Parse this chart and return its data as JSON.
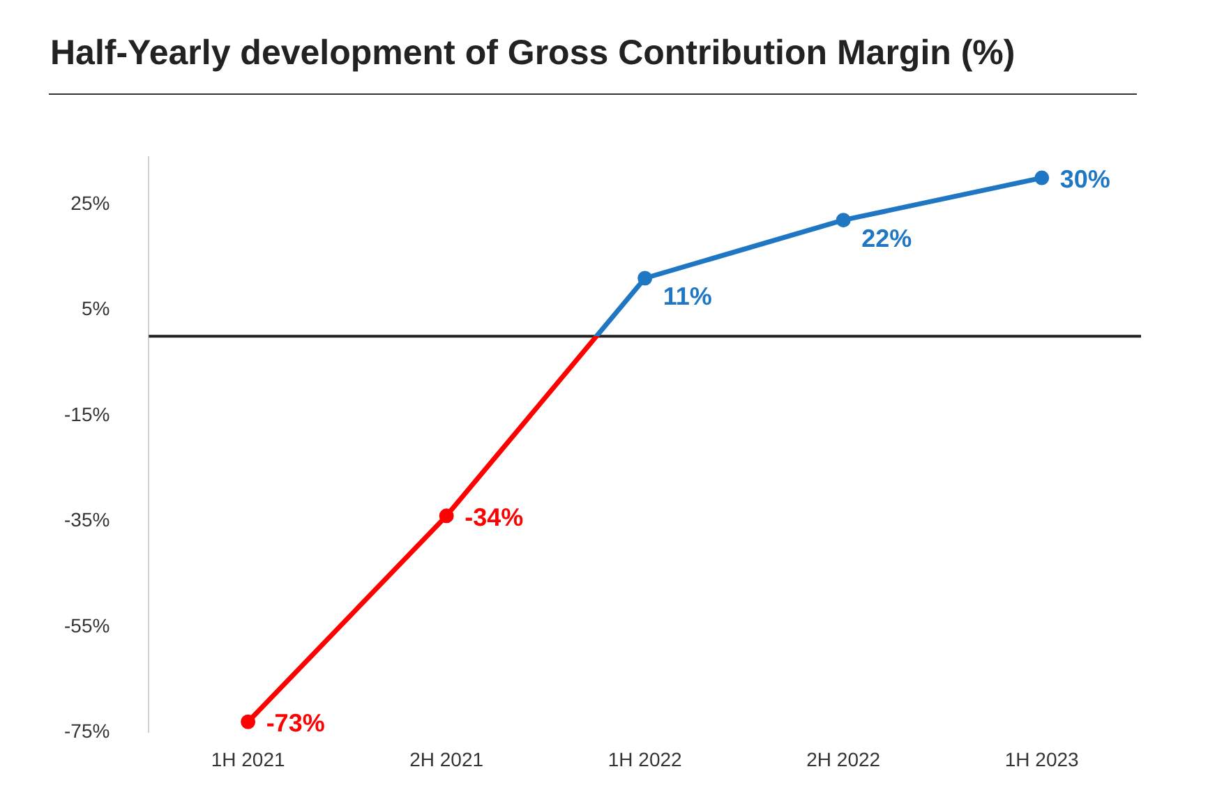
{
  "chart_data": {
    "type": "line",
    "title": "Half-Yearly development of Gross Contribution Margin (%)",
    "categories": [
      "1H 2021",
      "2H 2021",
      "1H 2022",
      "2H 2022",
      "1H 2023"
    ],
    "series": [
      {
        "colors": [
          "#ff0000",
          "#ff0000",
          "#1f77c4",
          "#1f77c4",
          "#1f77c4"
        ],
        "values": [
          -73,
          -34,
          11,
          22,
          30
        ],
        "value_labels": [
          "-73%",
          "-34%",
          "11%",
          "22%",
          "30%"
        ]
      }
    ],
    "ylim": [
      -75,
      34
    ],
    "yticks": [
      {
        "value": -75,
        "label": "-75%"
      },
      {
        "value": -55,
        "label": "-55%"
      },
      {
        "value": -35,
        "label": "-35%"
      },
      {
        "value": -15,
        "label": "-15%"
      },
      {
        "value": 5,
        "label": "5%"
      },
      {
        "value": 25,
        "label": "25%"
      }
    ],
    "ref_lines": [
      {
        "axis": "y",
        "value": 0,
        "color": "#222222"
      }
    ],
    "grid": false,
    "legend": false,
    "marker": "circle",
    "line_style": "solid"
  }
}
